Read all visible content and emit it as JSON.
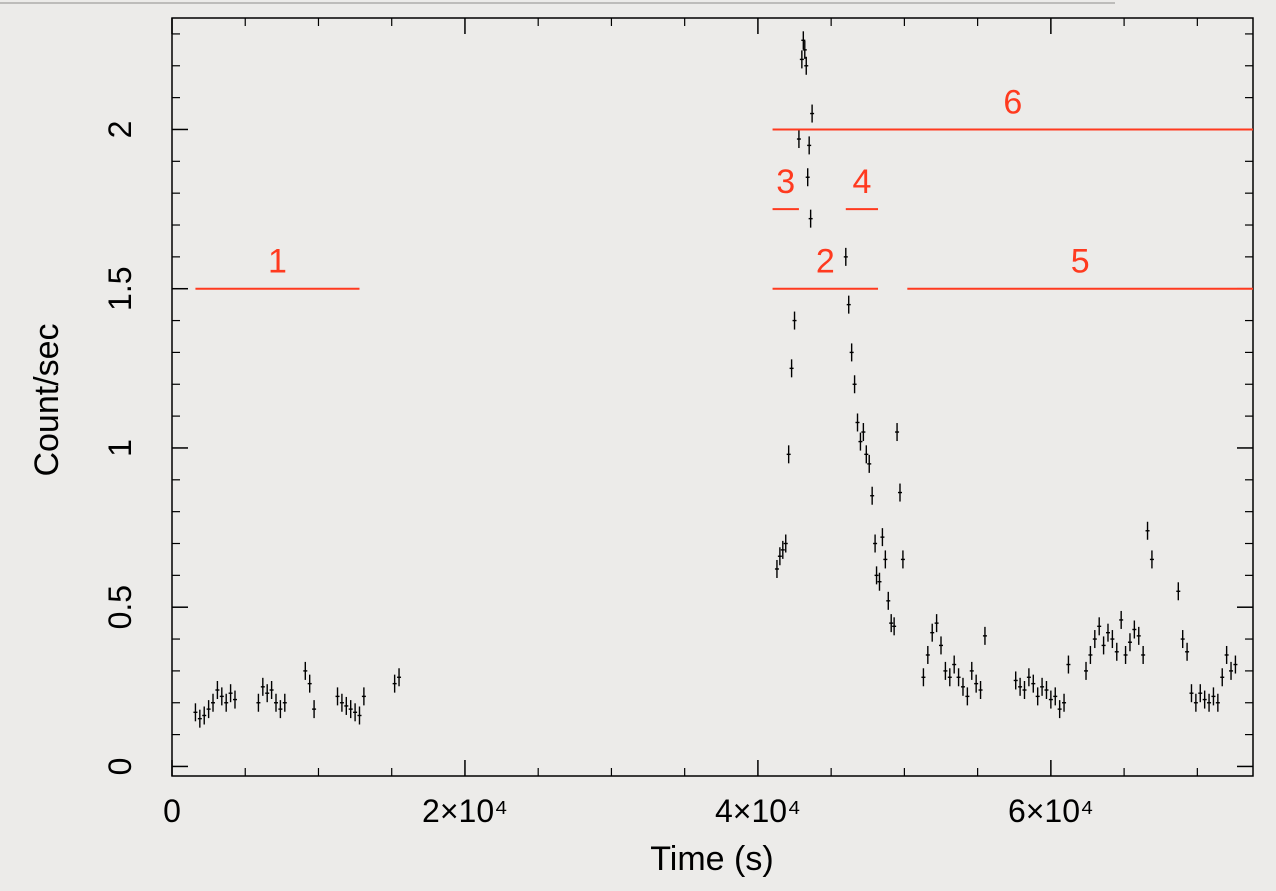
{
  "chart_data": {
    "type": "scatter",
    "title": "",
    "xlabel": "Time (s)",
    "ylabel": "Count/sec",
    "xlim": [
      0,
      73800
    ],
    "ylim": [
      -0.03,
      2.35
    ],
    "grid": false,
    "x_ticks": [
      {
        "value": 0,
        "label": "0"
      },
      {
        "value": 20000,
        "label": "2×10⁴"
      },
      {
        "value": 40000,
        "label": "4×10⁴"
      },
      {
        "value": 60000,
        "label": "6×10⁴"
      }
    ],
    "y_ticks": [
      {
        "value": 0,
        "label": "0"
      },
      {
        "value": 0.5,
        "label": "0.5"
      },
      {
        "value": 1,
        "label": "1"
      },
      {
        "value": 1.5,
        "label": "1.5"
      },
      {
        "value": 2,
        "label": "2"
      }
    ],
    "series": [
      {
        "color": "#000000",
        "points": [
          [
            1600,
            0.17
          ],
          [
            1900,
            0.15
          ],
          [
            2200,
            0.16
          ],
          [
            2500,
            0.18
          ],
          [
            2800,
            0.2
          ],
          [
            3100,
            0.24
          ],
          [
            3400,
            0.22
          ],
          [
            3700,
            0.2
          ],
          [
            4000,
            0.23
          ],
          [
            4300,
            0.21
          ],
          [
            5900,
            0.2
          ],
          [
            6200,
            0.25
          ],
          [
            6500,
            0.23
          ],
          [
            6800,
            0.24
          ],
          [
            7100,
            0.2
          ],
          [
            7400,
            0.18
          ],
          [
            7700,
            0.2
          ],
          [
            9100,
            0.3
          ],
          [
            9400,
            0.26
          ],
          [
            9700,
            0.18
          ],
          [
            11300,
            0.22
          ],
          [
            11600,
            0.2
          ],
          [
            11900,
            0.19
          ],
          [
            12200,
            0.18
          ],
          [
            12500,
            0.17
          ],
          [
            12800,
            0.16
          ],
          [
            13100,
            0.22
          ],
          [
            15200,
            0.26
          ],
          [
            15500,
            0.28
          ],
          [
            41300,
            0.62
          ],
          [
            41500,
            0.66
          ],
          [
            41700,
            0.68
          ],
          [
            41900,
            0.7
          ],
          [
            42100,
            0.98
          ],
          [
            42300,
            1.25
          ],
          [
            42500,
            1.4
          ],
          [
            42800,
            1.97
          ],
          [
            43000,
            2.22
          ],
          [
            43100,
            2.28
          ],
          [
            43200,
            2.25
          ],
          [
            43300,
            2.2
          ],
          [
            43400,
            1.85
          ],
          [
            43500,
            1.95
          ],
          [
            43600,
            1.72
          ],
          [
            43700,
            2.05
          ],
          [
            46000,
            1.6
          ],
          [
            46200,
            1.45
          ],
          [
            46400,
            1.3
          ],
          [
            46600,
            1.2
          ],
          [
            46800,
            1.08
          ],
          [
            47000,
            1.02
          ],
          [
            47200,
            1.05
          ],
          [
            47400,
            0.98
          ],
          [
            47600,
            0.95
          ],
          [
            47800,
            0.85
          ],
          [
            48000,
            0.7
          ],
          [
            48100,
            0.6
          ],
          [
            48300,
            0.58
          ],
          [
            48500,
            0.72
          ],
          [
            48700,
            0.65
          ],
          [
            48900,
            0.52
          ],
          [
            49100,
            0.45
          ],
          [
            49300,
            0.44
          ],
          [
            49500,
            1.05
          ],
          [
            49700,
            0.86
          ],
          [
            49900,
            0.65
          ],
          [
            51300,
            0.28
          ],
          [
            51600,
            0.35
          ],
          [
            51900,
            0.42
          ],
          [
            52200,
            0.45
          ],
          [
            52500,
            0.38
          ],
          [
            52800,
            0.3
          ],
          [
            53100,
            0.28
          ],
          [
            53400,
            0.32
          ],
          [
            53700,
            0.28
          ],
          [
            54000,
            0.25
          ],
          [
            54300,
            0.22
          ],
          [
            54600,
            0.3
          ],
          [
            54900,
            0.26
          ],
          [
            55200,
            0.24
          ],
          [
            55500,
            0.41
          ],
          [
            57600,
            0.27
          ],
          [
            57900,
            0.25
          ],
          [
            58200,
            0.24
          ],
          [
            58500,
            0.28
          ],
          [
            58800,
            0.26
          ],
          [
            59100,
            0.22
          ],
          [
            59400,
            0.25
          ],
          [
            59700,
            0.24
          ],
          [
            60000,
            0.21
          ],
          [
            60300,
            0.22
          ],
          [
            60600,
            0.18
          ],
          [
            60900,
            0.2
          ],
          [
            61200,
            0.32
          ],
          [
            62400,
            0.3
          ],
          [
            62700,
            0.35
          ],
          [
            63000,
            0.4
          ],
          [
            63300,
            0.44
          ],
          [
            63600,
            0.38
          ],
          [
            63900,
            0.42
          ],
          [
            64200,
            0.4
          ],
          [
            64500,
            0.36
          ],
          [
            64800,
            0.46
          ],
          [
            65100,
            0.35
          ],
          [
            65400,
            0.39
          ],
          [
            65700,
            0.43
          ],
          [
            66000,
            0.41
          ],
          [
            66300,
            0.35
          ],
          [
            66600,
            0.74
          ],
          [
            66900,
            0.65
          ],
          [
            68700,
            0.55
          ],
          [
            69000,
            0.4
          ],
          [
            69300,
            0.36
          ],
          [
            69600,
            0.23
          ],
          [
            69900,
            0.2
          ],
          [
            70200,
            0.23
          ],
          [
            70500,
            0.21
          ],
          [
            70800,
            0.2
          ],
          [
            71100,
            0.22
          ],
          [
            71400,
            0.2
          ],
          [
            71700,
            0.28
          ],
          [
            72000,
            0.35
          ],
          [
            72300,
            0.3
          ],
          [
            72600,
            0.32
          ]
        ]
      }
    ],
    "annotations": [
      {
        "label": "1",
        "x1": 1600,
        "x2": 12800,
        "y": 1.5,
        "color": "#ff3a1f"
      },
      {
        "label": "2",
        "x1": 41000,
        "x2": 48200,
        "y": 1.5,
        "color": "#ff3a1f"
      },
      {
        "label": "3",
        "x1": 41000,
        "x2": 42800,
        "y": 1.75,
        "color": "#ff3a1f"
      },
      {
        "label": "4",
        "x1": 46000,
        "x2": 48200,
        "y": 1.75,
        "color": "#ff3a1f"
      },
      {
        "label": "5",
        "x1": 50200,
        "x2": 73800,
        "y": 1.5,
        "color": "#ff3a1f"
      },
      {
        "label": "6",
        "x1": 41000,
        "x2": 73800,
        "y": 2.0,
        "color": "#ff3a1f"
      }
    ]
  }
}
